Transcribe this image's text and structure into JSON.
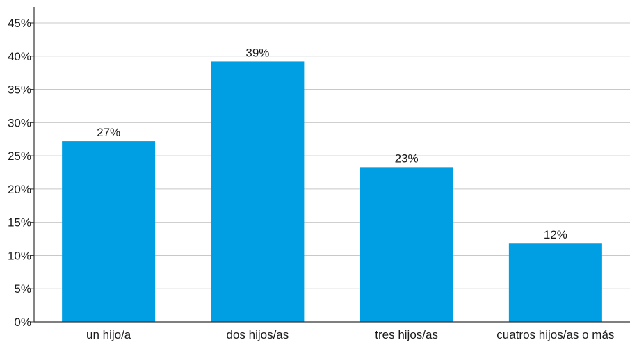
{
  "chart_data": {
    "type": "bar",
    "categories": [
      "un hijo/a",
      "dos hijos/as",
      "tres hijos/as",
      "cuatros hijos/as o más"
    ],
    "values": [
      27.2,
      39.2,
      23.3,
      11.8
    ],
    "data_labels": [
      "27%",
      "39%",
      "23%",
      "12%"
    ],
    "ylim": [
      0,
      45
    ],
    "yticks": [
      0,
      5,
      10,
      15,
      20,
      25,
      30,
      35,
      40,
      45
    ],
    "ytick_labels": [
      "0%",
      "5%",
      "10%",
      "15%",
      "20%",
      "25%",
      "30%",
      "35%",
      "40%",
      "45%"
    ],
    "grid": true,
    "bar_color": "#009fe3",
    "grid_color": "#c8c8c8",
    "axis_color": "#333333"
  }
}
